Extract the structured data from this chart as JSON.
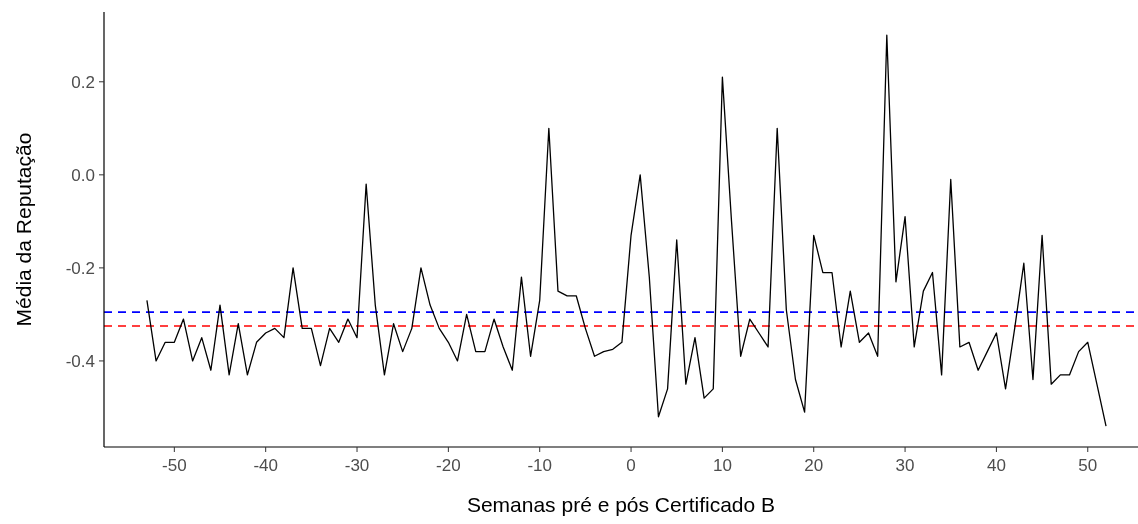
{
  "chart_data": {
    "type": "line",
    "xlabel": "Semanas pré e pós Certificado B",
    "ylabel": "Média da Reputação",
    "x": [
      -53,
      -52,
      -51,
      -50,
      -49,
      -48,
      -47,
      -46,
      -45,
      -44,
      -43,
      -42,
      -41,
      -40,
      -39,
      -38,
      -37,
      -36,
      -35,
      -34,
      -33,
      -32,
      -31,
      -30,
      -29,
      -28,
      -27,
      -26,
      -25,
      -24,
      -23,
      -22,
      -21,
      -20,
      -19,
      -18,
      -17,
      -16,
      -15,
      -14,
      -13,
      -12,
      -11,
      -10,
      -9,
      -8,
      -7,
      -6,
      -5,
      -4,
      -3,
      -2,
      -1,
      0,
      1,
      2,
      3,
      4,
      5,
      6,
      7,
      8,
      9,
      10,
      11,
      12,
      13,
      14,
      15,
      16,
      17,
      18,
      19,
      20,
      21,
      22,
      23,
      24,
      25,
      26,
      27,
      28,
      29,
      30,
      31,
      32,
      33,
      34,
      35,
      36,
      37,
      38,
      39,
      40,
      41,
      42,
      43,
      44,
      45,
      46,
      47,
      48,
      49,
      50,
      51,
      52
    ],
    "series": [
      {
        "color": "#000000",
        "values": [
          -0.27,
          -0.4,
          -0.36,
          -0.36,
          -0.31,
          -0.4,
          -0.35,
          -0.42,
          -0.28,
          -0.43,
          -0.32,
          -0.43,
          -0.36,
          -0.34,
          -0.33,
          -0.35,
          -0.2,
          -0.33,
          -0.33,
          -0.41,
          -0.33,
          -0.36,
          -0.31,
          -0.35,
          -0.02,
          -0.28,
          -0.43,
          -0.32,
          -0.38,
          -0.33,
          -0.2,
          -0.28,
          -0.33,
          -0.36,
          -0.4,
          -0.3,
          -0.38,
          -0.38,
          -0.31,
          -0.37,
          -0.42,
          -0.22,
          -0.39,
          -0.27,
          0.1,
          -0.25,
          -0.26,
          -0.26,
          -0.33,
          -0.39,
          -0.38,
          -0.375,
          -0.36,
          -0.13,
          0.0,
          -0.22,
          -0.52,
          -0.46,
          -0.14,
          -0.45,
          -0.35,
          -0.48,
          -0.46,
          0.21,
          -0.1,
          -0.39,
          -0.31,
          -0.34,
          -0.37,
          0.1,
          -0.29,
          -0.44,
          -0.51,
          -0.13,
          -0.21,
          -0.21,
          -0.37,
          -0.25,
          -0.36,
          -0.34,
          -0.39,
          0.3,
          -0.23,
          -0.09,
          -0.37,
          -0.25,
          -0.21,
          -0.43,
          -0.01,
          -0.37,
          -0.36,
          -0.42,
          -0.38,
          -0.34,
          -0.46,
          -0.33,
          -0.19,
          -0.44,
          -0.13,
          -0.45,
          -0.43,
          -0.43,
          -0.38,
          -0.36,
          -0.45,
          -0.54
        ]
      }
    ],
    "xlim": [
      -57.7,
      55.5
    ],
    "ylim": [
      -0.585,
      0.35
    ],
    "xticks": [
      -50,
      -40,
      -30,
      -20,
      -10,
      0,
      10,
      20,
      30,
      40,
      50
    ],
    "yticks": [
      {
        "value": -0.4,
        "label": "-0.4"
      },
      {
        "value": -0.2,
        "label": "-0.2"
      },
      {
        "value": 0,
        "label": "0.0"
      },
      {
        "value": 0.2,
        "label": "0.2"
      }
    ],
    "ref_lines": [
      {
        "axis": "y",
        "value": -0.295,
        "color": "#0000ff",
        "line_style": "dashed"
      },
      {
        "axis": "y",
        "value": -0.325,
        "color": "#ff0000",
        "line_style": "dashed"
      }
    ],
    "grid": false,
    "line_style": "solid",
    "marker": "none"
  }
}
